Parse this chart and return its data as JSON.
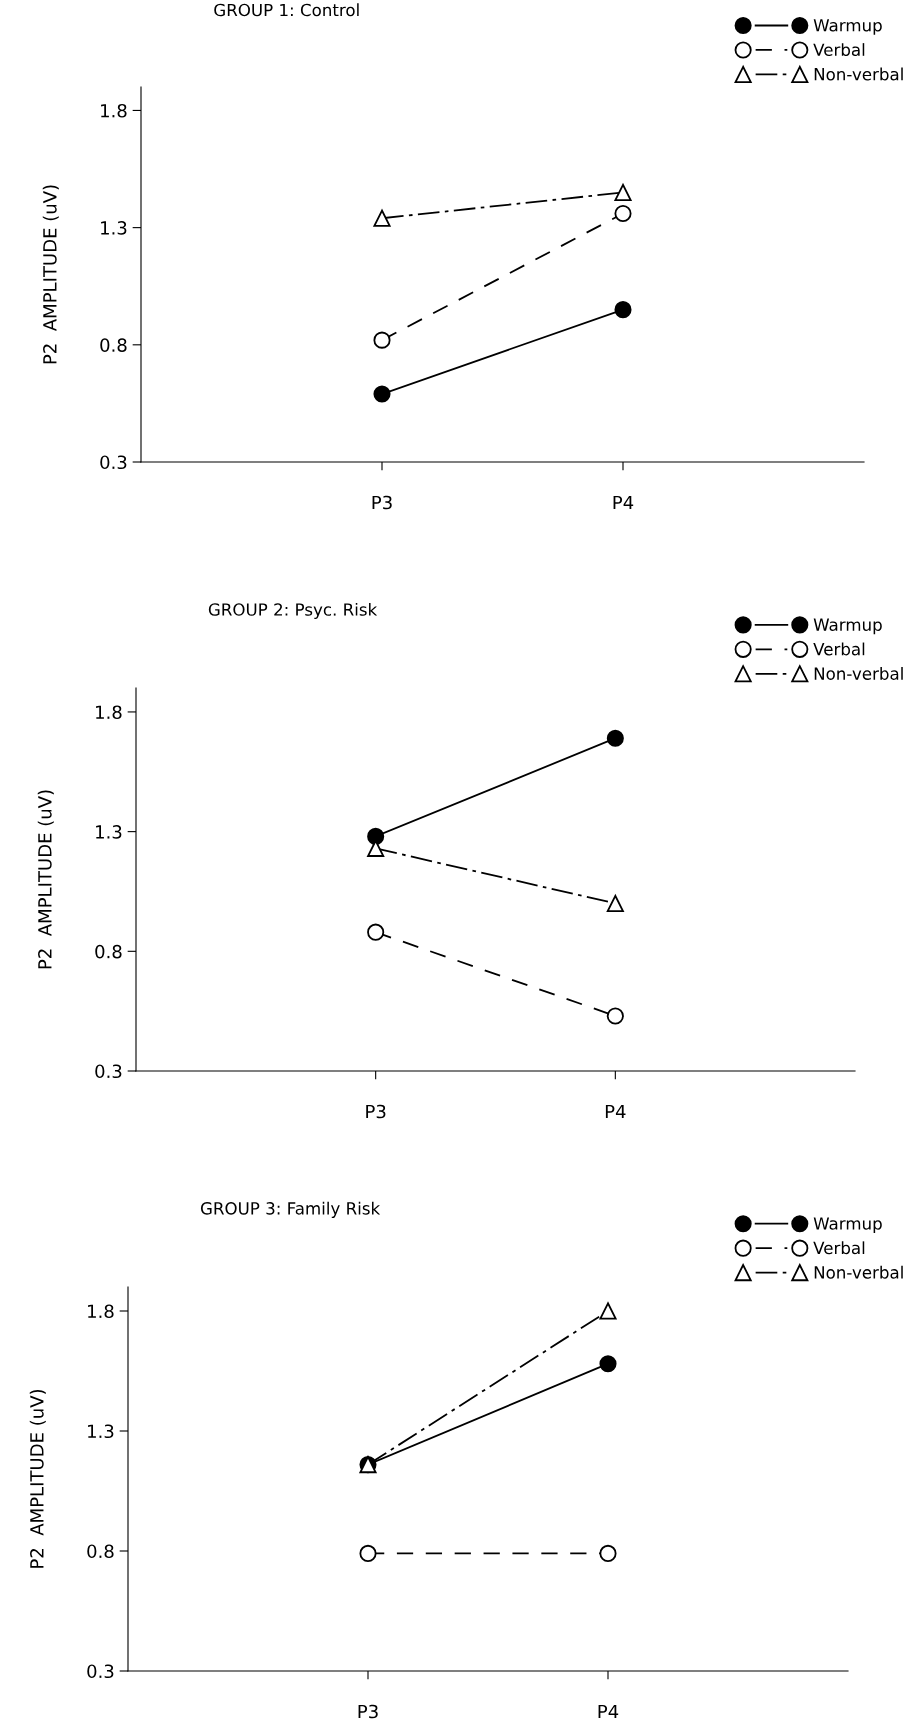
{
  "chart_data": [
    {
      "type": "line",
      "title": "GROUP 1: Control",
      "ylabel": "P2  AMPLITUDE (uV)",
      "categories": [
        "P3",
        "P4"
      ],
      "ylim": [
        0.3,
        1.9
      ],
      "yticks": [
        0.3,
        0.8,
        1.3,
        1.8
      ],
      "grid": false,
      "legend": "top right",
      "series": [
        {
          "name": "Warmup",
          "color": "#000000",
          "values": [
            0.59,
            0.95
          ],
          "marker": "circle",
          "line_style": "solid"
        },
        {
          "name": "Verbal",
          "color": "#ffffff",
          "values": [
            0.82,
            1.36
          ],
          "marker": "circle",
          "line_style": "dashed"
        },
        {
          "name": "Non-verbal",
          "color": "#ffffff",
          "values": [
            1.34,
            1.45
          ],
          "marker": "triangle",
          "line_style": "dashdot"
        }
      ]
    },
    {
      "type": "line",
      "title": "GROUP 2: Psyc. Risk",
      "ylabel": "P2  AMPLITUDE (uV)",
      "categories": [
        "P3",
        "P4"
      ],
      "ylim": [
        0.3,
        1.9
      ],
      "yticks": [
        0.3,
        0.8,
        1.3,
        1.8
      ],
      "grid": false,
      "legend": "top right",
      "series": [
        {
          "name": "Warmup",
          "color": "#000000",
          "values": [
            1.28,
            1.69
          ],
          "marker": "circle",
          "line_style": "solid"
        },
        {
          "name": "Verbal",
          "color": "#ffffff",
          "values": [
            0.88,
            0.53
          ],
          "marker": "circle",
          "line_style": "dashed"
        },
        {
          "name": "Non-verbal",
          "color": "#ffffff",
          "values": [
            1.23,
            1.0
          ],
          "marker": "triangle",
          "line_style": "dashdot"
        }
      ]
    },
    {
      "type": "line",
      "title": "GROUP 3: Family Risk",
      "ylabel": "P2  AMPLITUDE (uV)",
      "categories": [
        "P3",
        "P4"
      ],
      "ylim": [
        0.3,
        1.9
      ],
      "yticks": [
        0.3,
        0.8,
        1.3,
        1.8
      ],
      "grid": false,
      "legend": "top right",
      "series": [
        {
          "name": "Warmup",
          "color": "#000000",
          "values": [
            1.16,
            1.58
          ],
          "marker": "circle",
          "line_style": "solid"
        },
        {
          "name": "Verbal",
          "color": "#ffffff",
          "values": [
            0.79,
            0.79
          ],
          "marker": "circle",
          "line_style": "dashed"
        },
        {
          "name": "Non-verbal",
          "color": "#ffffff",
          "values": [
            1.16,
            1.8
          ],
          "marker": "triangle",
          "line_style": "dashdot"
        }
      ]
    }
  ]
}
